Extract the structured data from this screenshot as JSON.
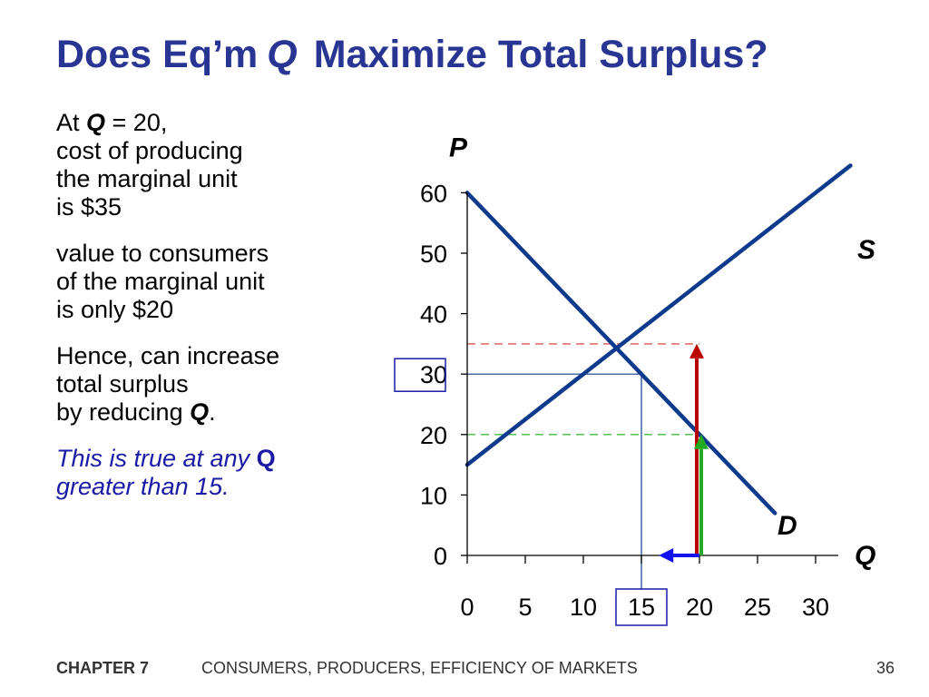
{
  "title": {
    "part1": "Does Eq’m",
    "q": "Q",
    "part2": "Maximize Total Surplus?"
  },
  "body": {
    "p1": {
      "at": "At ",
      "q": "Q",
      "rest": " = 20,",
      "line2": "cost of producing",
      "line3": "the marginal unit",
      "line4": "is $35"
    },
    "p2": {
      "line1": "value to consumers",
      "line2": "of the marginal unit",
      "line3": "is only $20"
    },
    "p3": {
      "line1": "Hence, can increase",
      "line2": "total surplus",
      "line3a": "by reducing ",
      "q": "Q",
      "line3b": "."
    },
    "p4": {
      "line1a": "This is true at any ",
      "q": "Q",
      "line2": "greater than 15."
    }
  },
  "footer": {
    "chapter": "CHAPTER 7",
    "title": "CONSUMERS, PRODUCERS, EFFICIENCY OF MARKETS",
    "page": "36"
  },
  "colors": {
    "title": "#283593",
    "curve": "#0d3a8c",
    "red_dash": "#e05555",
    "green_dash": "#44bb44",
    "red_arrow": "#bb0000",
    "green_arrow": "#22aa22",
    "blue_arrow": "#1111ee",
    "box": "#1a1aa6"
  },
  "chart_data": {
    "type": "line",
    "xlabel": "Q",
    "ylabel": "P",
    "xlim": [
      0,
      30
    ],
    "ylim": [
      0,
      60
    ],
    "xticks": [
      0,
      5,
      10,
      15,
      20,
      25,
      30
    ],
    "yticks": [
      0,
      10,
      20,
      30,
      40,
      50,
      60
    ],
    "boxed_xtick": 15,
    "boxed_ytick": 30,
    "series": [
      {
        "name": "S",
        "x": [
          0,
          33
        ],
        "y": [
          15,
          64.5
        ]
      },
      {
        "name": "D",
        "x": [
          0,
          26.5
        ],
        "y": [
          60,
          7
        ]
      }
    ],
    "equilibrium": {
      "x": 15,
      "y": 30
    },
    "reference_lines": [
      {
        "y": 35,
        "x_to": 20,
        "style": "red-dashed"
      },
      {
        "y": 20,
        "x_to": 20,
        "style": "green-dashed"
      }
    ],
    "arrows": [
      {
        "x": 20,
        "from_y": 0,
        "to_y": 35,
        "color": "red"
      },
      {
        "x": 20,
        "from_y": 0,
        "to_y": 20,
        "color": "green"
      },
      {
        "y": 0,
        "from_x": 20,
        "to_x": 16.5,
        "color": "blue"
      }
    ]
  }
}
